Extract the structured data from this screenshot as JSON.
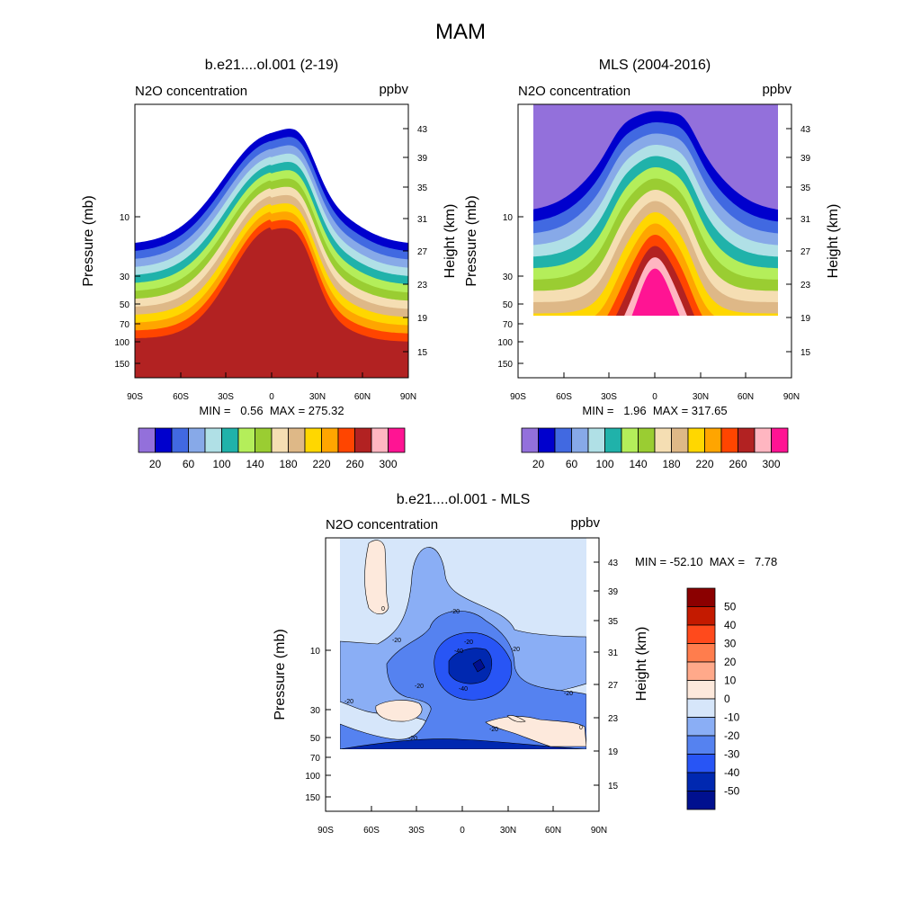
{
  "figure_title": "MAM",
  "chart_data": [
    {
      "type": "heatmap",
      "title": "b.e21....ol.001 (2-19)",
      "subtitle_left": "N2O concentration",
      "subtitle_right": "ppbv",
      "ylabel": "Pressure (mb)",
      "ylabel_right": "Height (km)",
      "xticks": [
        "90S",
        "60S",
        "30S",
        "0",
        "30N",
        "60N",
        "90N"
      ],
      "yticks": [
        "10",
        "30",
        "50",
        "70",
        "100",
        "150"
      ],
      "yticks_right": [
        "43",
        "39",
        "35",
        "31",
        "27",
        "23",
        "19",
        "15"
      ],
      "stats": "MIN =   0.56  MAX = 275.32",
      "colorbar": {
        "colors": [
          "#9370db",
          "#0000cd",
          "#4169e1",
          "#87a9e8",
          "#b0e0e6",
          "#20b2aa",
          "#b4ee5a",
          "#9acd32",
          "#f5deb3",
          "#deb887",
          "#ffd700",
          "#ffa500",
          "#ff4500",
          "#b22222",
          "#ffb6c1",
          "#ff1493"
        ],
        "labels": [
          "20",
          "60",
          "100",
          "140",
          "180",
          "220",
          "260",
          "300"
        ]
      }
    },
    {
      "type": "heatmap",
      "title": "MLS (2004-2016)",
      "subtitle_left": "N2O concentration",
      "subtitle_right": "ppbv",
      "ylabel": "Pressure (mb)",
      "ylabel_right": "Height (km)",
      "xticks": [
        "90S",
        "60S",
        "30S",
        "0",
        "30N",
        "60N",
        "90N"
      ],
      "yticks": [
        "10",
        "30",
        "50",
        "70",
        "100",
        "150"
      ],
      "yticks_right": [
        "43",
        "39",
        "35",
        "31",
        "27",
        "23",
        "19",
        "15"
      ],
      "stats": "MIN =   1.96  MAX = 317.65",
      "colorbar": {
        "colors": [
          "#9370db",
          "#0000cd",
          "#4169e1",
          "#87a9e8",
          "#b0e0e6",
          "#20b2aa",
          "#b4ee5a",
          "#9acd32",
          "#f5deb3",
          "#deb887",
          "#ffd700",
          "#ffa500",
          "#ff4500",
          "#b22222",
          "#ffb6c1",
          "#ff1493"
        ],
        "labels": [
          "20",
          "60",
          "100",
          "140",
          "180",
          "220",
          "260",
          "300"
        ]
      }
    },
    {
      "type": "heatmap",
      "title": "b.e21....ol.001 - MLS",
      "subtitle_left": "N2O concentration",
      "subtitle_right": "ppbv",
      "ylabel": "Pressure (mb)",
      "ylabel_right": "Height (km)",
      "xticks": [
        "90S",
        "60S",
        "30S",
        "0",
        "30N",
        "60N",
        "90N"
      ],
      "yticks": [
        "10",
        "30",
        "50",
        "70",
        "100",
        "150"
      ],
      "yticks_right": [
        "43",
        "39",
        "35",
        "31",
        "27",
        "23",
        "19",
        "15"
      ],
      "stats": "MIN = -52.10  MAX =   7.78",
      "contour_labels": [
        "0",
        "-20",
        "-20",
        "-20",
        "-40",
        "-20",
        "-40",
        "-20",
        "-20",
        "-20",
        "-20",
        "-20",
        "0"
      ],
      "colorbar": {
        "colors": [
          "#8b0000",
          "#c41a00",
          "#ff4a1c",
          "#ff7d4d",
          "#ffa98a",
          "#fde9dc",
          "#d6e6fa",
          "#8aaef5",
          "#5582f0",
          "#2855f5",
          "#0028b0",
          "#00108f"
        ],
        "labels": [
          "50",
          "40",
          "30",
          "20",
          "10",
          "0",
          "-10",
          "-20",
          "-30",
          "-40",
          "-50"
        ]
      }
    }
  ]
}
